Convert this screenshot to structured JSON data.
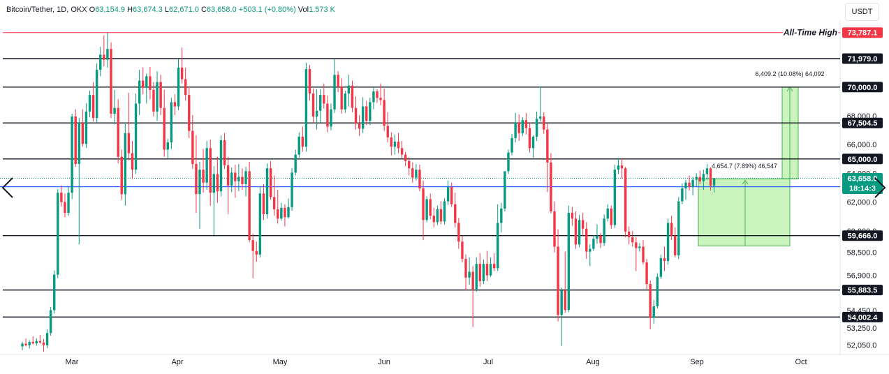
{
  "header": {
    "symbol": "Bitcoin/Tether, 1D, OKX",
    "open_label": "O",
    "open": "63,154.9",
    "high_label": "H",
    "high": "63,674.3",
    "low_label": "L",
    "low": "62,671.0",
    "close_label": "C",
    "close": "63,658.0",
    "change": "+503.1 (+0.80%)",
    "vol_label": "Vol",
    "vol": "1.573 K"
  },
  "currency": "USDT",
  "colors": {
    "up": "#089981",
    "down": "#f23645",
    "ath": "#f23645",
    "blue_line": "#2962ff",
    "measure_fill": "#b7f0a8",
    "measure_line": "#4caf50"
  },
  "chart_data": {
    "type": "candlestick",
    "x_tick_labels": [
      "Mar",
      "Apr",
      "May",
      "Jun",
      "Jul",
      "Aug",
      "Sep",
      "Oct"
    ],
    "y_tick_labels": [
      "52,050.0",
      "53,250.0",
      "54,450.0",
      "56,900.0",
      "58,500.0",
      "60,000.0",
      "62,000.0",
      "64,000.0",
      "66,000.0",
      "68,000.0",
      "70,000.0",
      "72,000.0"
    ],
    "y_tick_values": [
      52050,
      53250,
      54450,
      56900,
      58500,
      60000,
      62000,
      64000,
      66000,
      68000,
      70000,
      72000
    ],
    "ylim": [
      51400,
      74600
    ],
    "horizontal_levels": [
      {
        "value": 73787.1,
        "label": "73,787.1",
        "color": "#f23645",
        "annotation": "All-Time High"
      },
      {
        "value": 71979.0,
        "label": "71,979.0",
        "color": "#131722"
      },
      {
        "value": 70000.0,
        "label": "70,000.0",
        "color": "#131722"
      },
      {
        "value": 67504.5,
        "label": "67,504.5",
        "color": "#131722"
      },
      {
        "value": 65000.0,
        "label": "65,000.0",
        "color": "#131722"
      },
      {
        "value": 59666.0,
        "label": "59,666.0",
        "color": "#131722"
      },
      {
        "value": 55883.5,
        "label": "55,883.5",
        "color": "#131722"
      },
      {
        "value": 54002.4,
        "label": "54,002.4",
        "color": "#131722"
      }
    ],
    "current_price": {
      "value": 63658.0,
      "label": "63,658.0",
      "countdown": "18:14:3"
    },
    "blue_level": {
      "value": 63068.0,
      "label": "63,068.0"
    },
    "measurements": [
      {
        "label": "4,654.7 (7.89%) 46,547",
        "from": 58950,
        "to": 63620
      },
      {
        "label": "6,409.2 (10.08%) 64,092",
        "from": 63620,
        "to": 70000
      }
    ],
    "candles": [
      [
        51960,
        52280,
        51700,
        52150
      ],
      [
        52150,
        52500,
        51960,
        52040
      ],
      [
        52040,
        52400,
        51820,
        52270
      ],
      [
        52270,
        52660,
        52100,
        52170
      ],
      [
        52170,
        52520,
        52000,
        52330
      ],
      [
        52330,
        52750,
        52150,
        52230
      ],
      [
        52230,
        52480,
        51600,
        52040
      ],
      [
        52040,
        53150,
        51830,
        52890
      ],
      [
        52890,
        54700,
        52700,
        54480
      ],
      [
        54480,
        57250,
        54250,
        56950
      ],
      [
        56950,
        62900,
        56700,
        62650
      ],
      [
        62650,
        63150,
        61680,
        62000
      ],
      [
        62000,
        62600,
        60950,
        61250
      ],
      [
        61250,
        63050,
        61050,
        62650
      ],
      [
        62650,
        68150,
        62200,
        67950
      ],
      [
        67950,
        68450,
        64450,
        64650
      ],
      [
        64650,
        67850,
        59050,
        67550
      ],
      [
        67550,
        68450,
        65850,
        66050
      ],
      [
        66050,
        68880,
        65770,
        68300
      ],
      [
        68300,
        69750,
        67900,
        69450
      ],
      [
        69450,
        70350,
        67600,
        67850
      ],
      [
        67850,
        71650,
        67550,
        71200
      ],
      [
        71200,
        72800,
        70750,
        72250
      ],
      [
        72250,
        73600,
        71450,
        71900
      ],
      [
        71900,
        73787,
        71350,
        72650
      ],
      [
        72650,
        73100,
        67850,
        68150
      ],
      [
        68150,
        69800,
        67400,
        68550
      ],
      [
        68550,
        69150,
        64700,
        65150
      ],
      [
        65150,
        65650,
        62150,
        62550
      ],
      [
        62550,
        67550,
        61750,
        66800
      ],
      [
        66800,
        69600,
        64900,
        65400
      ],
      [
        65400,
        66250,
        63600,
        64250
      ],
      [
        64250,
        69550,
        63950,
        68850
      ],
      [
        68850,
        71200,
        68050,
        70450
      ],
      [
        70450,
        71350,
        69500,
        69950
      ],
      [
        69950,
        70950,
        68850,
        70750
      ],
      [
        70750,
        71400,
        69150,
        69800
      ],
      [
        69800,
        70350,
        67950,
        68300
      ],
      [
        68300,
        71100,
        67650,
        70350
      ],
      [
        70350,
        70850,
        68050,
        68550
      ],
      [
        68550,
        69800,
        65150,
        65650
      ],
      [
        65650,
        66400,
        65050,
        66150
      ],
      [
        66150,
        69250,
        65700,
        68950
      ],
      [
        68950,
        69500,
        68050,
        68650
      ],
      [
        68650,
        71950,
        68400,
        71350
      ],
      [
        71350,
        72750,
        70250,
        70550
      ],
      [
        70550,
        71350,
        69050,
        69450
      ],
      [
        69450,
        70050,
        66450,
        66950
      ],
      [
        66950,
        68050,
        64300,
        64650
      ],
      [
        64650,
        66650,
        61250,
        62550
      ],
      [
        62550,
        64800,
        60150,
        64250
      ],
      [
        64250,
        65700,
        62650,
        63350
      ],
      [
        63350,
        66250,
        62850,
        65750
      ],
      [
        65750,
        66350,
        61750,
        62650
      ],
      [
        62650,
        64500,
        59700,
        63950
      ],
      [
        63950,
        65150,
        61950,
        62750
      ],
      [
        62750,
        66650,
        62400,
        66300
      ],
      [
        66300,
        66800,
        64300,
        64550
      ],
      [
        64550,
        65150,
        61150,
        63150
      ],
      [
        63150,
        64400,
        62700,
        64050
      ],
      [
        64050,
        64600,
        62300,
        63450
      ],
      [
        63450,
        64650,
        62750,
        63750
      ],
      [
        63750,
        64350,
        62850,
        63250
      ],
      [
        63250,
        64450,
        62400,
        64150
      ],
      [
        64150,
        64800,
        59200,
        59350
      ],
      [
        59350,
        59800,
        56700,
        58600
      ],
      [
        58600,
        59250,
        57850,
        58350
      ],
      [
        58350,
        63100,
        58150,
        62600
      ],
      [
        62600,
        63250,
        60750,
        61150
      ],
      [
        61150,
        64700,
        60850,
        64350
      ],
      [
        64350,
        64850,
        62150,
        62350
      ],
      [
        62350,
        63850,
        61050,
        61500
      ],
      [
        61500,
        62850,
        60500,
        60850
      ],
      [
        60850,
        61950,
        60700,
        61600
      ],
      [
        61600,
        61850,
        60300,
        60950
      ],
      [
        60950,
        62250,
        60850,
        61650
      ],
      [
        61650,
        64350,
        61400,
        64050
      ],
      [
        64050,
        65650,
        63850,
        65300
      ],
      [
        65300,
        66850,
        65100,
        66550
      ],
      [
        66550,
        67250,
        65500,
        65850
      ],
      [
        65850,
        71700,
        65500,
        71250
      ],
      [
        71250,
        71550,
        69050,
        69550
      ],
      [
        69550,
        69900,
        67500,
        67950
      ],
      [
        67950,
        69850,
        67050,
        68350
      ],
      [
        68350,
        69850,
        67550,
        69450
      ],
      [
        69450,
        70250,
        68500,
        68850
      ],
      [
        68850,
        69400,
        66850,
        67250
      ],
      [
        67250,
        68850,
        67000,
        68450
      ],
      [
        68450,
        71950,
        68200,
        70850
      ],
      [
        70850,
        71100,
        69650,
        70050
      ],
      [
        70050,
        70600,
        68150,
        68450
      ],
      [
        68450,
        69750,
        68200,
        69550
      ],
      [
        69550,
        70850,
        68650,
        70100
      ],
      [
        70100,
        70450,
        68250,
        68550
      ],
      [
        68550,
        69350,
        67050,
        67450
      ],
      [
        67450,
        68050,
        66600,
        67100
      ],
      [
        67100,
        69300,
        66800,
        68650
      ],
      [
        68650,
        69050,
        67350,
        67650
      ],
      [
        67650,
        69250,
        67350,
        68950
      ],
      [
        68950,
        69950,
        68450,
        69700
      ],
      [
        69700,
        69850,
        68900,
        69250
      ],
      [
        69250,
        70250,
        68750,
        69100
      ],
      [
        69100,
        69900,
        66950,
        67300
      ],
      [
        67300,
        68250,
        66150,
        66500
      ],
      [
        66500,
        66850,
        65250,
        65850
      ],
      [
        65850,
        66700,
        65300,
        66200
      ],
      [
        66200,
        66800,
        65400,
        65750
      ],
      [
        65750,
        66250,
        65050,
        65300
      ],
      [
        65300,
        65500,
        64500,
        64850
      ],
      [
        64850,
        65100,
        63850,
        64350
      ],
      [
        64350,
        64750,
        63350,
        63700
      ],
      [
        63700,
        64650,
        63500,
        64250
      ],
      [
        64250,
        64600,
        62750,
        62950
      ],
      [
        62950,
        63500,
        59350,
        60750
      ],
      [
        60750,
        62400,
        60600,
        62200
      ],
      [
        62200,
        62600,
        60800,
        61050
      ],
      [
        61050,
        61600,
        60250,
        60600
      ],
      [
        60600,
        61750,
        60400,
        61500
      ],
      [
        61500,
        62050,
        60450,
        60650
      ],
      [
        60650,
        62250,
        60450,
        62050
      ],
      [
        62050,
        63500,
        61800,
        63050
      ],
      [
        63050,
        63350,
        61650,
        61850
      ],
      [
        61850,
        62650,
        60250,
        60550
      ],
      [
        60550,
        60900,
        58750,
        59250
      ],
      [
        59250,
        59650,
        57800,
        58050
      ],
      [
        58050,
        58350,
        55850,
        56750
      ],
      [
        56750,
        58150,
        56250,
        57150
      ],
      [
        57150,
        57550,
        53300,
        55950
      ],
      [
        55950,
        58150,
        55750,
        57700
      ],
      [
        57700,
        58450,
        56100,
        56500
      ],
      [
        56500,
        58000,
        56300,
        57700
      ],
      [
        57700,
        58600,
        56500,
        56900
      ],
      [
        56900,
        58150,
        56800,
        57700
      ],
      [
        57700,
        58450,
        57200,
        57400
      ],
      [
        57400,
        61850,
        57200,
        60550
      ],
      [
        60550,
        61950,
        59900,
        61550
      ],
      [
        61550,
        63950,
        61350,
        64150
      ],
      [
        64150,
        65650,
        63950,
        65450
      ],
      [
        65450,
        66750,
        65250,
        66450
      ],
      [
        66450,
        68200,
        66150,
        67550
      ],
      [
        67550,
        68100,
        66250,
        66800
      ],
      [
        66800,
        67900,
        66600,
        67700
      ],
      [
        67700,
        68200,
        66700,
        67150
      ],
      [
        67150,
        67550,
        65450,
        65750
      ],
      [
        65750,
        66650,
        65100,
        66550
      ],
      [
        66550,
        68300,
        66250,
        67800
      ],
      [
        67800,
        70050,
        67600,
        67950
      ],
      [
        67950,
        68250,
        66750,
        67050
      ],
      [
        67050,
        67450,
        62700,
        64750
      ],
      [
        64750,
        65400,
        61200,
        61350
      ],
      [
        61350,
        62050,
        58500,
        58900
      ],
      [
        58900,
        60100,
        53700,
        54150
      ],
      [
        54150,
        56050,
        52000,
        55850
      ],
      [
        55850,
        58550,
        54300,
        54500
      ],
      [
        54500,
        61750,
        54350,
        61250
      ],
      [
        61250,
        61650,
        60350,
        60850
      ],
      [
        60850,
        61350,
        58750,
        59050
      ],
      [
        59050,
        61100,
        58850,
        60750
      ],
      [
        60750,
        61250,
        59650,
        60150
      ],
      [
        60150,
        60600,
        58050,
        58550
      ],
      [
        58550,
        59050,
        57550,
        58750
      ],
      [
        58750,
        59700,
        58600,
        59450
      ],
      [
        59450,
        60450,
        59100,
        59650
      ],
      [
        59650,
        59850,
        58800,
        59150
      ],
      [
        59150,
        61150,
        58950,
        60850
      ],
      [
        60850,
        61850,
        60650,
        61550
      ],
      [
        61550,
        61750,
        60150,
        60400
      ],
      [
        60400,
        64600,
        60200,
        64250
      ],
      [
        64250,
        65050,
        63950,
        64550
      ],
      [
        64550,
        65050,
        63650,
        64350
      ],
      [
        64350,
        64450,
        59550,
        59950
      ],
      [
        59950,
        60300,
        59050,
        59550
      ],
      [
        59550,
        60000,
        58900,
        59200
      ],
      [
        59200,
        59550,
        57200,
        58800
      ],
      [
        58800,
        59150,
        58550,
        58900
      ],
      [
        58900,
        59350,
        57650,
        57800
      ],
      [
        57800,
        58050,
        55950,
        56300
      ],
      [
        56300,
        56550,
        53150,
        53950
      ],
      [
        53950,
        55200,
        53550,
        54750
      ],
      [
        54750,
        57050,
        54600,
        56800
      ],
      [
        56800,
        58350,
        56650,
        58100
      ],
      [
        58100,
        58900,
        57200,
        57900
      ],
      [
        57900,
        60850,
        57650,
        60550
      ],
      [
        60550,
        61050,
        59350,
        59650
      ],
      [
        59650,
        60250,
        58150,
        58300
      ],
      [
        58300,
        62350,
        58050,
        62050
      ],
      [
        62050,
        63300,
        61850,
        62950
      ],
      [
        62950,
        63550,
        62150,
        63350
      ],
      [
        63350,
        63850,
        62800,
        63050
      ],
      [
        63050,
        63750,
        62450,
        63550
      ],
      [
        63550,
        64000,
        63100,
        63750
      ],
      [
        63750,
        64200,
        63250,
        63450
      ],
      [
        63450,
        64250,
        62850,
        63950
      ],
      [
        63950,
        64650,
        63550,
        64350
      ],
      [
        64350,
        64400,
        62800,
        63150
      ],
      [
        63150,
        63674,
        62671,
        63658
      ]
    ]
  }
}
